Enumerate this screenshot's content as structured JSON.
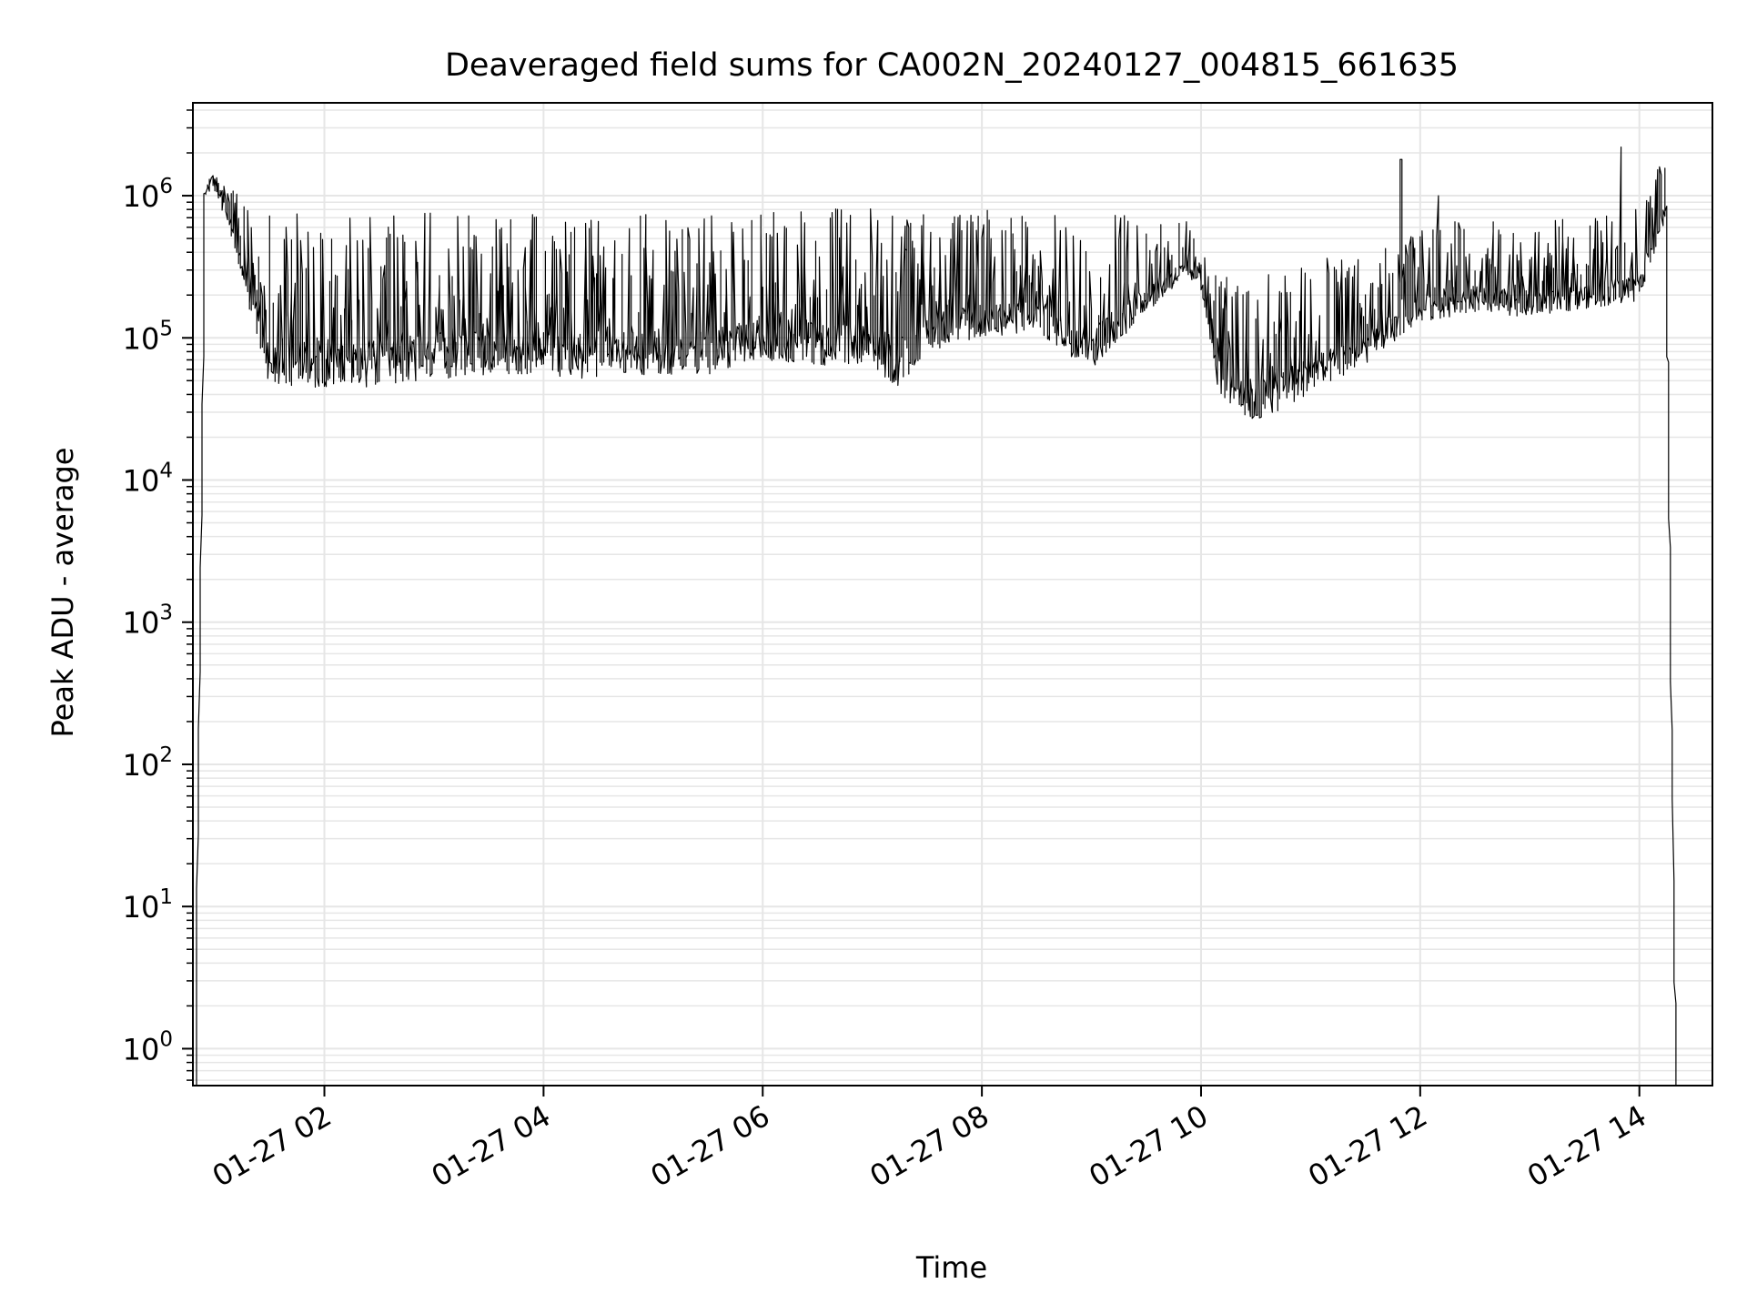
{
  "chart_data": {
    "type": "line",
    "title": "Deaveraged field sums for CA002N_20240127_004815_661635",
    "xlabel": "Time",
    "ylabel": "Peak ADU - average",
    "yscale": "log",
    "grid": true,
    "line_color": "#000000",
    "grid_color": "#e6e6e6",
    "x_ticks": [
      {
        "value": "2024-01-27 02:00",
        "label": "01-27 02"
      },
      {
        "value": "2024-01-27 04:00",
        "label": "01-27 04"
      },
      {
        "value": "2024-01-27 06:00",
        "label": "01-27 06"
      },
      {
        "value": "2024-01-27 08:00",
        "label": "01-27 08"
      },
      {
        "value": "2024-01-27 10:00",
        "label": "01-27 10"
      },
      {
        "value": "2024-01-27 12:00",
        "label": "01-27 12"
      },
      {
        "value": "2024-01-27 14:00",
        "label": "01-27 14"
      }
    ],
    "y_ticks": [
      {
        "value": 1,
        "base": "10",
        "exp": "0"
      },
      {
        "value": 10,
        "base": "10",
        "exp": "1"
      },
      {
        "value": 100,
        "base": "10",
        "exp": "2"
      },
      {
        "value": 1000,
        "base": "10",
        "exp": "3"
      },
      {
        "value": 10000,
        "base": "10",
        "exp": "4"
      },
      {
        "value": 100000,
        "base": "10",
        "exp": "5"
      },
      {
        "value": 1000000,
        "base": "10",
        "exp": "6"
      }
    ],
    "xlim": [
      "2024-01-27 00:48",
      "2024-01-27 14:40"
    ],
    "ylim": [
      0.55,
      4500000
    ],
    "series": [
      {
        "name": "",
        "envelope": [
          {
            "t": "2024-01-27 00:50",
            "low": 1,
            "high": 1
          },
          {
            "t": "2024-01-27 00:55",
            "low": 1000000,
            "high": 1200000
          },
          {
            "t": "2024-01-27 01:00",
            "low": 1100000,
            "high": 1450000
          },
          {
            "t": "2024-01-27 01:10",
            "low": 500000,
            "high": 1100000
          },
          {
            "t": "2024-01-27 01:20",
            "low": 150000,
            "high": 800000
          },
          {
            "t": "2024-01-27 01:30",
            "low": 50000,
            "high": 800000
          },
          {
            "t": "2024-01-27 01:40",
            "low": 45000,
            "high": 950000
          },
          {
            "t": "2024-01-27 02:00",
            "low": 45000,
            "high": 800000
          },
          {
            "t": "2024-01-27 02:30",
            "low": 45000,
            "high": 750000
          },
          {
            "t": "2024-01-27 03:00",
            "low": 50000,
            "high": 800000
          },
          {
            "t": "2024-01-27 03:30",
            "low": 55000,
            "high": 700000
          },
          {
            "t": "2024-01-27 04:00",
            "low": 55000,
            "high": 750000
          },
          {
            "t": "2024-01-27 04:30",
            "low": 50000,
            "high": 700000
          },
          {
            "t": "2024-01-27 05:00",
            "low": 55000,
            "high": 800000
          },
          {
            "t": "2024-01-27 05:30",
            "low": 55000,
            "high": 750000
          },
          {
            "t": "2024-01-27 06:00",
            "low": 70000,
            "high": 750000
          },
          {
            "t": "2024-01-27 06:30",
            "low": 65000,
            "high": 850000
          },
          {
            "t": "2024-01-27 07:00",
            "low": 60000,
            "high": 850000
          },
          {
            "t": "2024-01-27 07:15",
            "low": 45000,
            "high": 800000
          },
          {
            "t": "2024-01-27 07:30",
            "low": 80000,
            "high": 750000
          },
          {
            "t": "2024-01-27 08:00",
            "low": 100000,
            "high": 800000
          },
          {
            "t": "2024-01-27 08:30",
            "low": 110000,
            "high": 750000
          },
          {
            "t": "2024-01-27 09:00",
            "low": 60000,
            "high": 700000
          },
          {
            "t": "2024-01-27 09:30",
            "low": 150000,
            "high": 800000
          },
          {
            "t": "2024-01-27 09:50",
            "low": 250000,
            "high": 750000
          },
          {
            "t": "2024-01-27 10:00",
            "low": 250000,
            "high": 400000
          },
          {
            "t": "2024-01-27 10:10",
            "low": 40000,
            "high": 300000
          },
          {
            "t": "2024-01-27 10:30",
            "low": 25000,
            "high": 300000
          },
          {
            "t": "2024-01-27 11:00",
            "low": 40000,
            "high": 350000
          },
          {
            "t": "2024-01-27 11:30",
            "low": 65000,
            "high": 400000
          },
          {
            "t": "2024-01-27 12:00",
            "low": 130000,
            "high": 600000
          },
          {
            "t": "2024-01-27 12:30",
            "low": 150000,
            "high": 700000
          },
          {
            "t": "2024-01-27 13:00",
            "low": 140000,
            "high": 650000
          },
          {
            "t": "2024-01-27 13:30",
            "low": 160000,
            "high": 700000
          },
          {
            "t": "2024-01-27 14:00",
            "low": 180000,
            "high": 900000
          },
          {
            "t": "2024-01-27 14:15",
            "low": 700000,
            "high": 2000000
          },
          {
            "t": "2024-01-27 14:20",
            "low": 1,
            "high": 30
          }
        ],
        "spikes": [
          {
            "t": "2024-01-27 11:50",
            "value": 1800000
          },
          {
            "t": "2024-01-27 12:10",
            "value": 1000000
          },
          {
            "t": "2024-01-27 13:50",
            "value": 2200000
          }
        ]
      }
    ]
  }
}
